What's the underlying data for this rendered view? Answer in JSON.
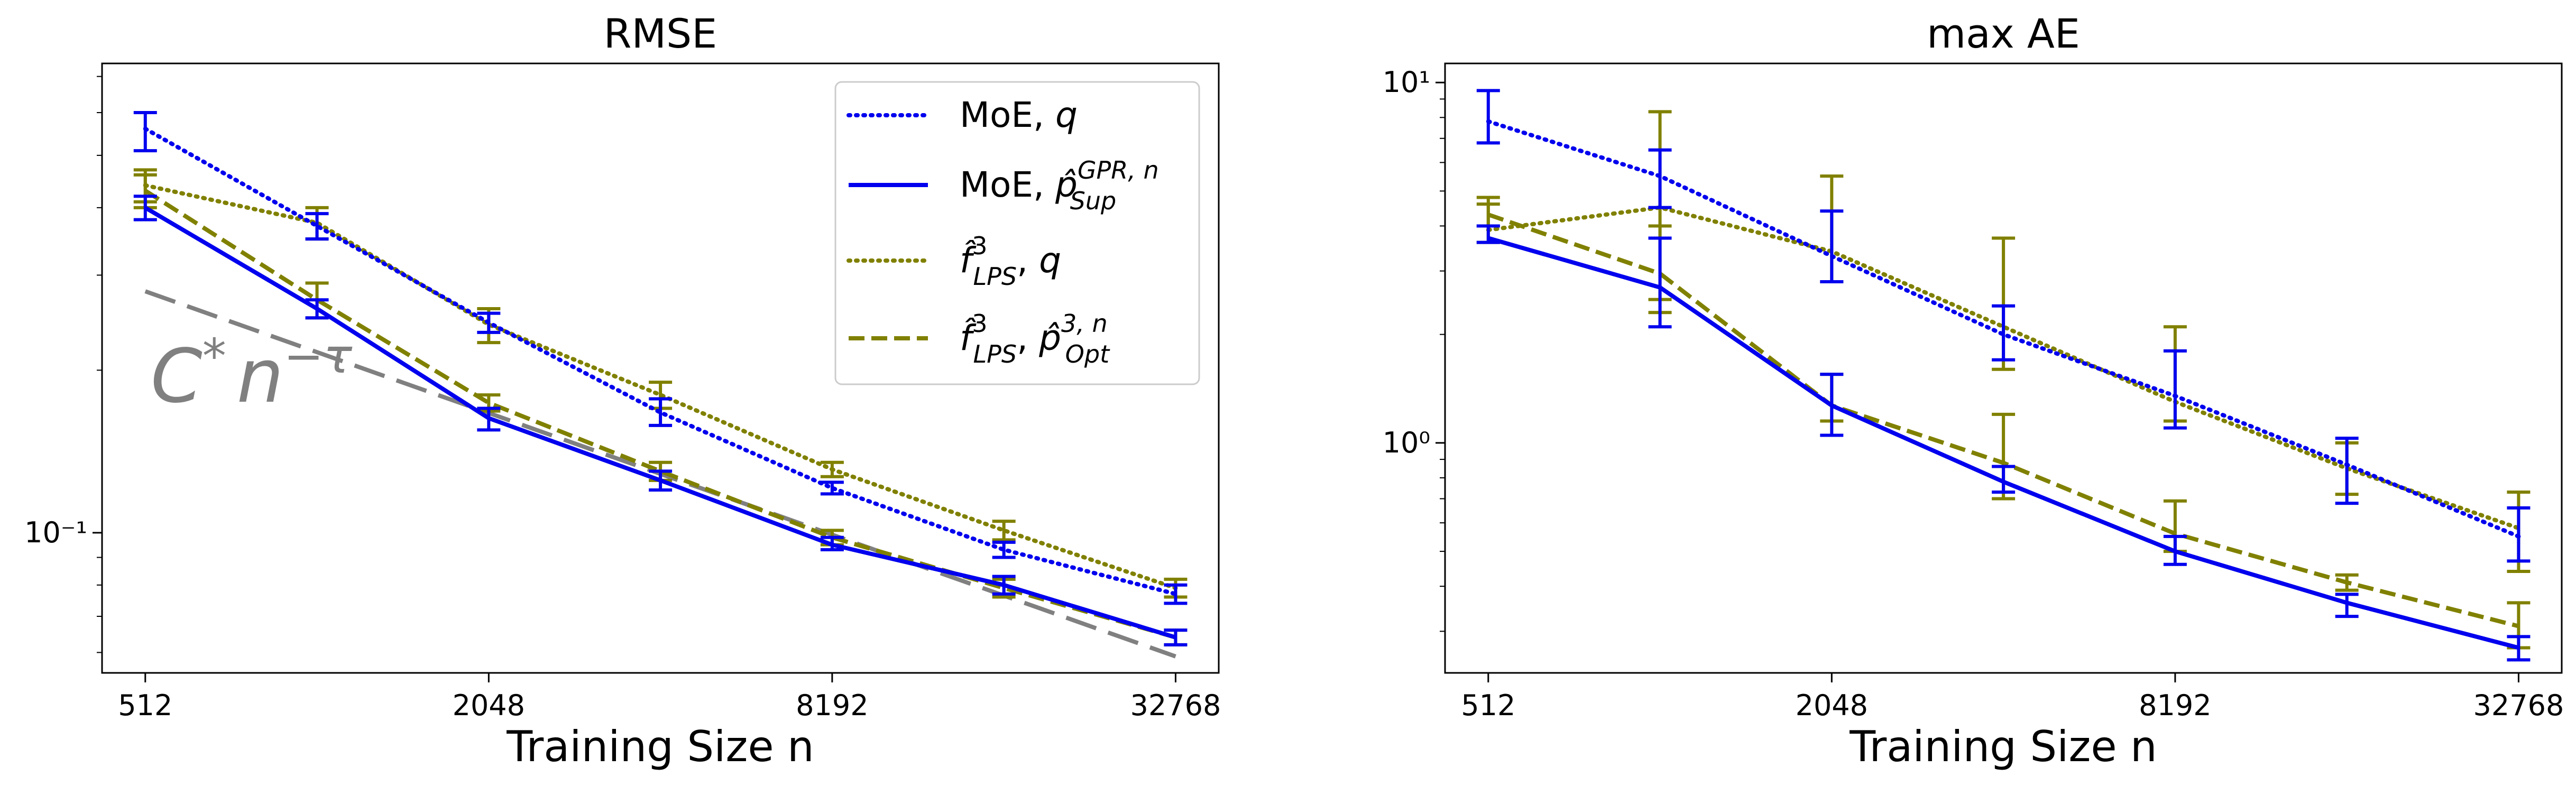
{
  "chart_data": [
    {
      "type": "line",
      "title": "RMSE",
      "xlabel": "Training Size n",
      "ylabel": "",
      "xscale": "log2",
      "yscale": "log",
      "xlim": [
        430,
        39000
      ],
      "ylim": [
        0.055,
        0.74
      ],
      "xticks": [
        512,
        2048,
        8192,
        32768
      ],
      "xtick_labels": [
        "512",
        "2048",
        "8192",
        "32768"
      ],
      "ytick_labels": [
        {
          "value": 0.1,
          "label": "10⁻¹"
        }
      ],
      "grid": false,
      "legend_position": "top-right",
      "x": [
        512,
        1024,
        2048,
        4096,
        8192,
        16384,
        32768
      ],
      "series": [
        {
          "name": "MoE, q",
          "color": "#0000ee",
          "style": "dotted",
          "values": [
            0.56,
            0.37,
            0.245,
            0.167,
            0.121,
            0.093,
            0.077
          ],
          "err_low": [
            0.51,
            0.35,
            0.235,
            0.158,
            0.118,
            0.09,
            0.074
          ],
          "err_high": [
            0.6,
            0.39,
            0.255,
            0.177,
            0.124,
            0.096,
            0.08
          ]
        },
        {
          "name": "MoE, p̂_Sup^{GPR,n}",
          "color": "#0000ee",
          "style": "solid",
          "values": [
            0.4,
            0.26,
            0.163,
            0.125,
            0.095,
            0.08,
            0.064
          ],
          "err_low": [
            0.38,
            0.25,
            0.155,
            0.12,
            0.093,
            0.077,
            0.062
          ],
          "err_high": [
            0.42,
            0.27,
            0.17,
            0.13,
            0.098,
            0.083,
            0.066
          ]
        },
        {
          "name": "f̂_LPS^3, q",
          "color": "#808000",
          "style": "dotted",
          "values": [
            0.44,
            0.375,
            0.243,
            0.18,
            0.131,
            0.101,
            0.079
          ],
          "err_low": [
            0.41,
            0.35,
            0.225,
            0.17,
            0.127,
            0.097,
            0.076
          ],
          "err_high": [
            0.47,
            0.4,
            0.26,
            0.19,
            0.135,
            0.105,
            0.082
          ]
        },
        {
          "name": "f̂_LPS^3, p̂_Opt^{3,n}",
          "color": "#808000",
          "style": "dashed",
          "values": [
            0.43,
            0.27,
            0.174,
            0.13,
            0.098,
            0.079,
            0.064
          ],
          "err_low": [
            0.4,
            0.25,
            0.168,
            0.125,
            0.095,
            0.076,
            0.062
          ],
          "err_high": [
            0.46,
            0.29,
            0.18,
            0.135,
            0.101,
            0.082,
            0.066
          ]
        }
      ],
      "reference_line": {
        "x": [
          512,
          32768
        ],
        "values": [
          0.28,
          0.059
        ],
        "color": "#808080",
        "style": "long-dash"
      },
      "annotations": [
        {
          "text_main": "C",
          "text_sup1": "*",
          "text_mid": "n",
          "text_sup2": "−τ",
          "color": "#808080"
        }
      ]
    },
    {
      "type": "line",
      "title": "max AE",
      "xlabel": "Training Size n",
      "ylabel": "",
      "xscale": "log2",
      "yscale": "log",
      "xlim": [
        430,
        39000
      ],
      "ylim": [
        0.23,
        11.3
      ],
      "xticks": [
        512,
        2048,
        8192,
        32768
      ],
      "xtick_labels": [
        "512",
        "2048",
        "8192",
        "32768"
      ],
      "ytick_labels": [
        {
          "value": 1,
          "label": "10⁰"
        },
        {
          "value": 10,
          "label": "10¹"
        }
      ],
      "grid": false,
      "x": [
        512,
        1024,
        2048,
        4096,
        8192,
        16384,
        32768
      ],
      "series": [
        {
          "name": "MoE, q",
          "color": "#0000ee",
          "style": "dotted",
          "values": [
            7.8,
            5.5,
            3.3,
            2.0,
            1.35,
            0.87,
            0.55
          ],
          "err_low": [
            6.8,
            4.5,
            2.8,
            1.7,
            1.1,
            0.68,
            0.47
          ],
          "err_high": [
            9.5,
            6.5,
            4.4,
            2.4,
            1.8,
            1.03,
            0.66
          ]
        },
        {
          "name": "MoE, p̂_Sup^{GPR,n}",
          "color": "#0000ee",
          "style": "solid",
          "values": [
            3.7,
            2.7,
            1.27,
            0.78,
            0.5,
            0.36,
            0.27
          ],
          "err_low": [
            3.6,
            2.1,
            1.05,
            0.73,
            0.46,
            0.33,
            0.25
          ],
          "err_high": [
            4.0,
            3.7,
            1.55,
            0.86,
            0.55,
            0.38,
            0.29
          ]
        },
        {
          "name": "f̂_LPS^3, q",
          "color": "#808000",
          "style": "dotted",
          "values": [
            3.9,
            4.5,
            3.4,
            2.1,
            1.3,
            0.85,
            0.58
          ],
          "err_low": [
            3.6,
            2.5,
            2.8,
            1.6,
            1.15,
            0.72,
            0.44
          ],
          "err_high": [
            4.6,
            8.3,
            5.5,
            3.7,
            2.1,
            1.0,
            0.73
          ]
        },
        {
          "name": "f̂_LPS^3, p̂_Opt^{3,n}",
          "color": "#808000",
          "style": "dashed",
          "values": [
            4.3,
            2.95,
            1.27,
            0.88,
            0.56,
            0.41,
            0.31
          ],
          "err_low": [
            4.0,
            2.3,
            1.15,
            0.7,
            0.5,
            0.39,
            0.27
          ],
          "err_high": [
            4.8,
            4.0,
            1.55,
            1.2,
            0.69,
            0.43,
            0.36
          ]
        }
      ]
    }
  ]
}
